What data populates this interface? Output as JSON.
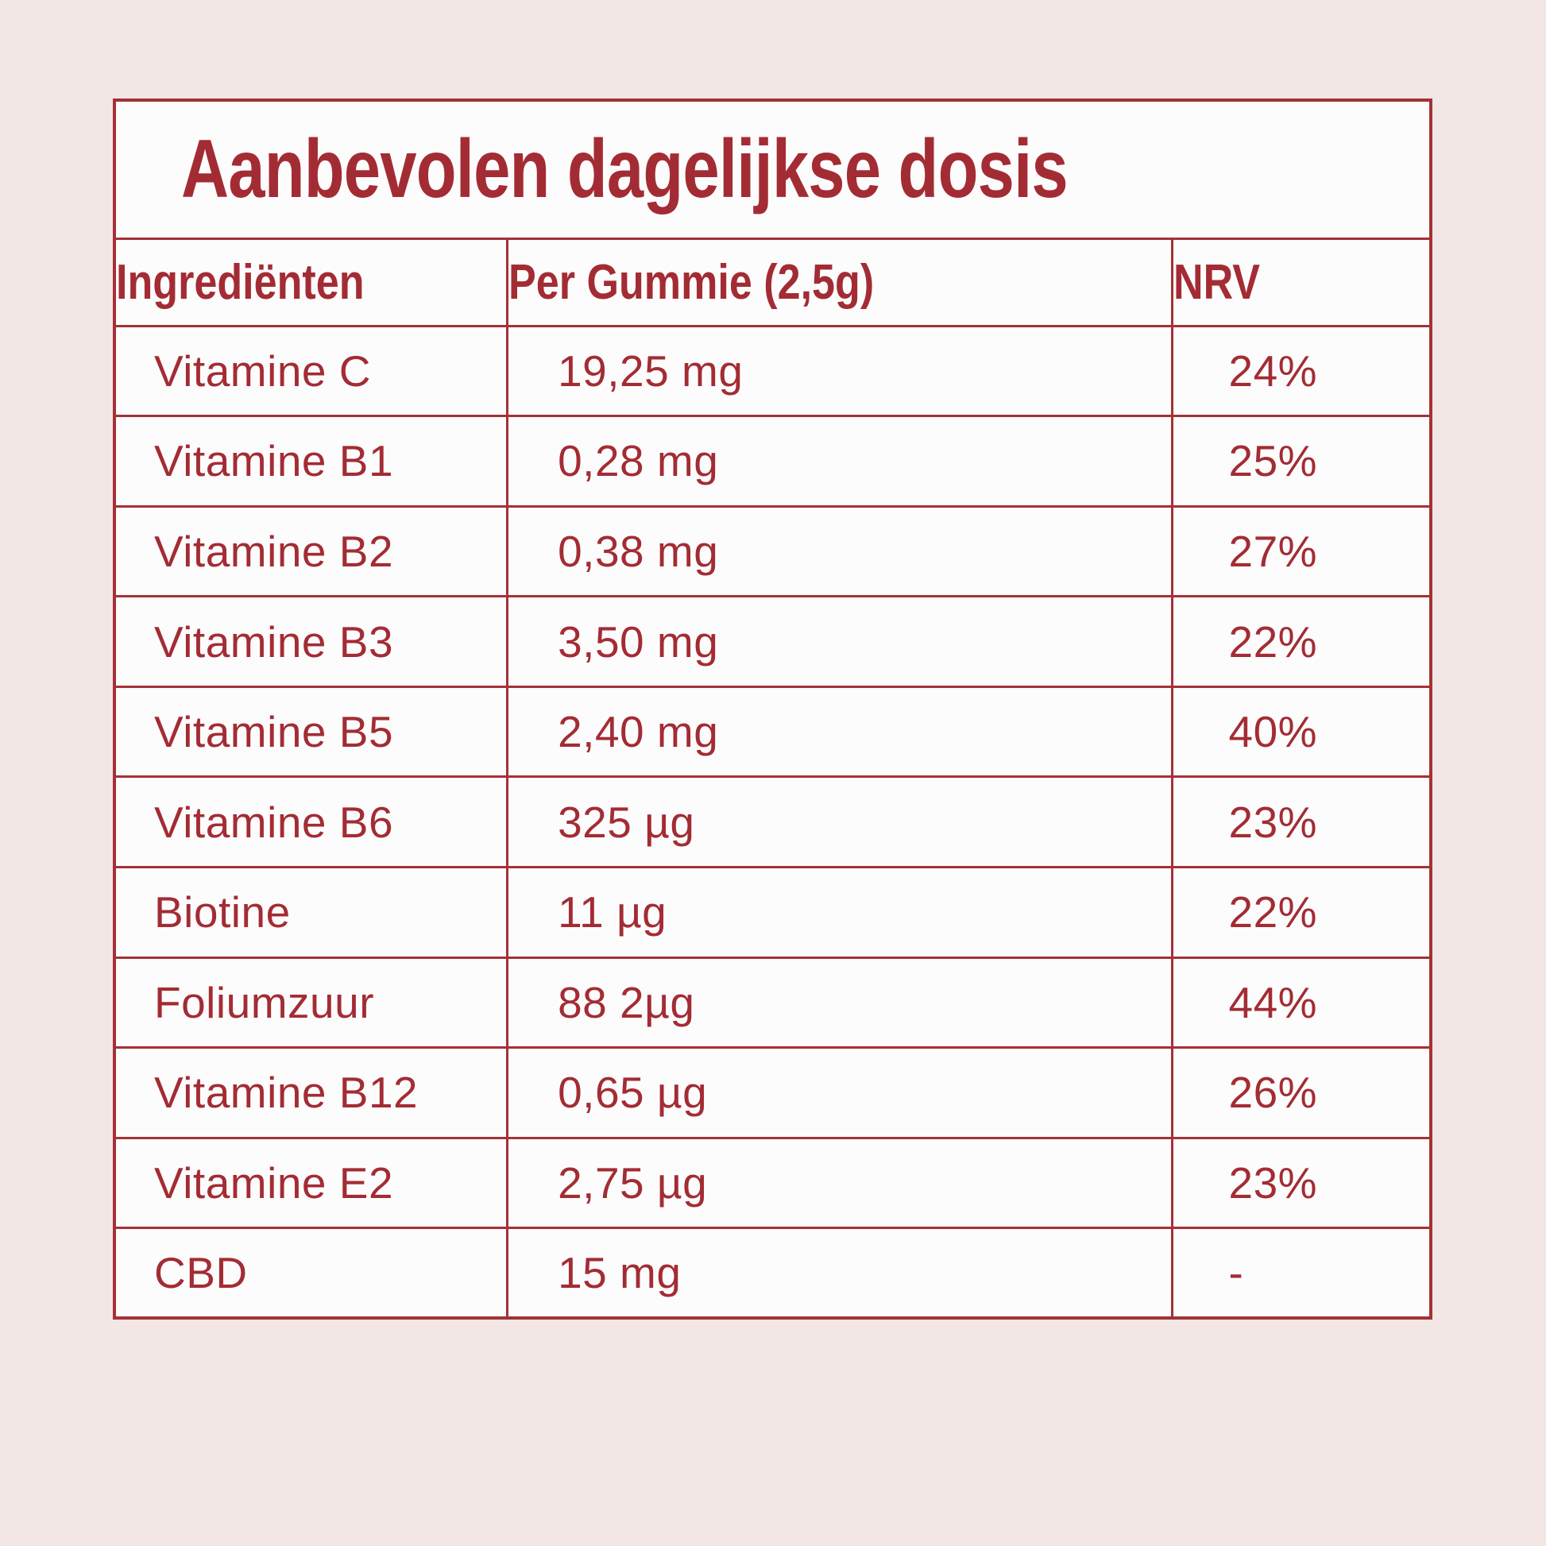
{
  "title": "Aanbevolen dagelijkse dosis",
  "table": {
    "headers": {
      "ingredient": "Ingrediënten",
      "amount": "Per Gummie (2,5g)",
      "nrv": "NRV"
    },
    "rows": [
      {
        "ingredient": "Vitamine C",
        "amount": "19,25 mg",
        "nrv": "24%"
      },
      {
        "ingredient": "Vitamine B1",
        "amount": "0,28 mg",
        "nrv": "25%"
      },
      {
        "ingredient": "Vitamine B2",
        "amount": "0,38 mg",
        "nrv": "27%"
      },
      {
        "ingredient": "Vitamine B3",
        "amount": "3,50 mg",
        "nrv": "22%"
      },
      {
        "ingredient": "Vitamine B5",
        "amount": "2,40 mg",
        "nrv": "40%"
      },
      {
        "ingredient": "Vitamine B6",
        "amount": "325 µg",
        "nrv": "23%"
      },
      {
        "ingredient": "Biotine",
        "amount": "11 µg",
        "nrv": "22%"
      },
      {
        "ingredient": "Foliumzuur",
        "amount": "88 2µg",
        "nrv": "44%"
      },
      {
        "ingredient": "Vitamine B12",
        "amount": "0,65 µg",
        "nrv": "26%"
      },
      {
        "ingredient": "Vitamine E2",
        "amount": "2,75 µg",
        "nrv": "23%"
      },
      {
        "ingredient": "CBD",
        "amount": "15 mg",
        "nrv": "-"
      }
    ]
  },
  "colors": {
    "accent_red": "#A32C34",
    "border_red": "#A43137",
    "page_background": "#F2E7E5",
    "cell_background": "#FDFCFC"
  }
}
